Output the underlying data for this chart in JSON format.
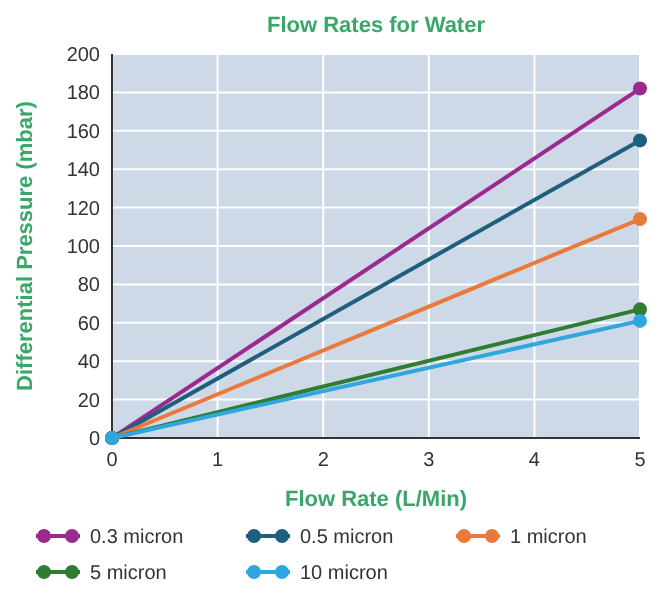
{
  "chart_data": {
    "type": "line",
    "title": "Flow Rates for Water",
    "xlabel": "Flow Rate (L/Min)",
    "ylabel": "Differential Pressure (mbar)",
    "xlim": [
      0,
      5
    ],
    "xticks": [
      0,
      1,
      2,
      3,
      4,
      5
    ],
    "ylim": [
      0,
      200
    ],
    "yticks": [
      0,
      20,
      40,
      60,
      80,
      100,
      120,
      140,
      160,
      180,
      200
    ],
    "grid": true,
    "legend": "bottom",
    "marker": "circle",
    "line_style": "solid",
    "x": [
      0,
      5
    ],
    "series": [
      {
        "name": "0.3 micron",
        "color": "#9b2a8f",
        "values": [
          0,
          182
        ]
      },
      {
        "name": "0.5 micron",
        "color": "#1f5f7e",
        "values": [
          0,
          155
        ]
      },
      {
        "name": "1 micron",
        "color": "#ea7a3c",
        "values": [
          0,
          114
        ]
      },
      {
        "name": "5 micron",
        "color": "#2e7d32",
        "values": [
          0,
          67
        ]
      },
      {
        "name": "10 micron",
        "color": "#2ea6de",
        "values": [
          0,
          61
        ]
      }
    ]
  }
}
